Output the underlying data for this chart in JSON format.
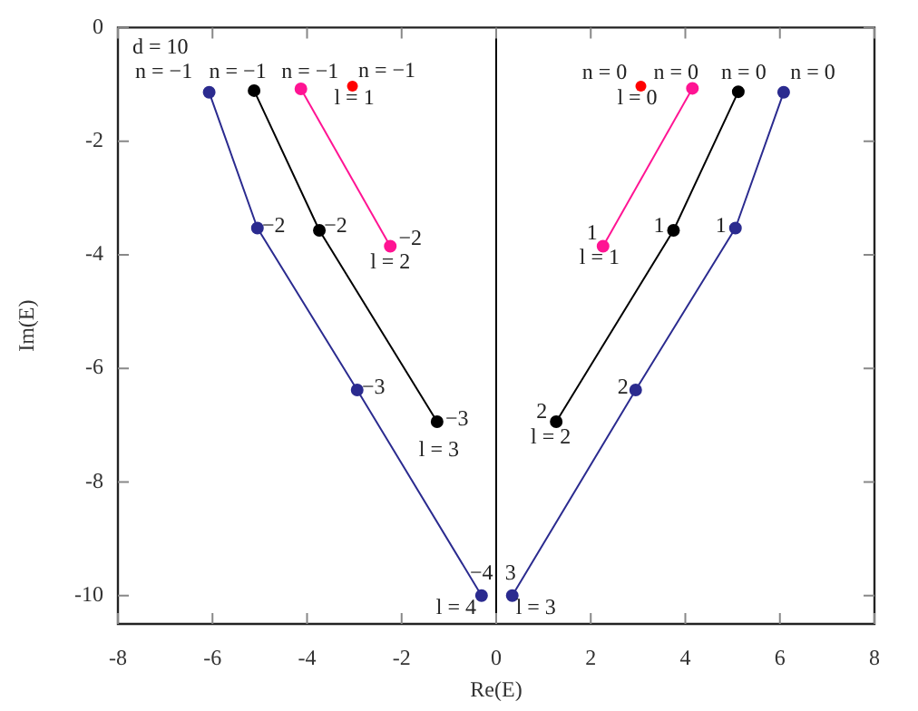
{
  "chart_data": {
    "type": "line",
    "xlabel": "Re(E)",
    "ylabel": "Im(E)",
    "xlim": [
      -8,
      8
    ],
    "xticks": [
      -8,
      -6,
      -4,
      -2,
      0,
      2,
      4,
      6,
      8
    ],
    "ylim": [
      -10.5,
      0
    ],
    "yticks": [
      -10,
      -8,
      -6,
      -4,
      -2,
      0
    ],
    "grid": false,
    "legend": false,
    "marker": "circle",
    "line_style": "solid",
    "series": [
      {
        "type": "scatter",
        "color": "#ff0000",
        "x": [
          -3.04,
          3.06
        ],
        "values": [
          -1.03,
          -1.03
        ]
      },
      {
        "type": "line",
        "color": "#ff1493",
        "x": [
          -4.13,
          -2.24
        ],
        "values": [
          -1.08,
          -3.85
        ]
      },
      {
        "type": "line",
        "color": "#ff1493",
        "x": [
          4.15,
          2.26
        ],
        "values": [
          -1.07,
          -3.85
        ]
      },
      {
        "type": "line",
        "color": "#000000",
        "x": [
          -5.12,
          -3.74,
          -1.25
        ],
        "values": [
          -1.11,
          -3.57,
          -6.94
        ]
      },
      {
        "type": "line",
        "color": "#000000",
        "x": [
          5.12,
          3.75,
          1.27
        ],
        "values": [
          -1.13,
          -3.57,
          -6.94
        ]
      },
      {
        "type": "line",
        "color": "#2b2b8f",
        "x": [
          -6.07,
          -5.05,
          -2.94,
          -0.31
        ],
        "values": [
          -1.14,
          -3.53,
          -6.38,
          -10.0
        ]
      },
      {
        "type": "line",
        "color": "#2b2b8f",
        "x": [
          6.08,
          5.06,
          2.95,
          0.34
        ],
        "values": [
          -1.14,
          -3.53,
          -6.38,
          -10.0
        ]
      }
    ],
    "ref_lines": [
      {
        "axis": "x",
        "value": 0,
        "color": "#000000"
      }
    ],
    "annotations": [
      "d = 10",
      {
        "text": "n = −1",
        "x": -6.07,
        "y": -1.14
      },
      {
        "text": "n = −1",
        "x": -5.12,
        "y": -1.11
      },
      {
        "text": "n = −1",
        "x": -4.13,
        "y": -1.08
      },
      {
        "text": "n = −1",
        "x": -3.04,
        "y": -1.03
      },
      {
        "text": "l = 1",
        "x": -3.04,
        "y": -1.03
      },
      {
        "text": "−2",
        "x": -5.05,
        "y": -3.53
      },
      {
        "text": "−2",
        "x": -3.74,
        "y": -3.57
      },
      {
        "text": "−2",
        "x": -2.24,
        "y": -3.85
      },
      {
        "text": "l = 2",
        "x": -2.24,
        "y": -3.85
      },
      {
        "text": "−3",
        "x": -2.94,
        "y": -6.38
      },
      {
        "text": "−3",
        "x": -1.25,
        "y": -6.94
      },
      {
        "text": "l = 3",
        "x": -1.25,
        "y": -6.94
      },
      {
        "text": "−4",
        "x": -0.31,
        "y": -10.0
      },
      {
        "text": "l = 4",
        "x": -0.31,
        "y": -10.0
      },
      {
        "text": "n = 0",
        "x": 3.06,
        "y": -1.03
      },
      {
        "text": "n = 0",
        "x": 4.15,
        "y": -1.07
      },
      {
        "text": "n = 0",
        "x": 5.12,
        "y": -1.13
      },
      {
        "text": "n = 0",
        "x": 6.08,
        "y": -1.14
      },
      {
        "text": "l = 0",
        "x": 3.06,
        "y": -1.03
      },
      {
        "text": "1",
        "x": 2.26,
        "y": -3.85
      },
      {
        "text": "l = 1",
        "x": 2.26,
        "y": -3.85
      },
      {
        "text": "1",
        "x": 3.75,
        "y": -3.57
      },
      {
        "text": "1",
        "x": 5.06,
        "y": -3.53
      },
      {
        "text": "2",
        "x": 1.27,
        "y": -6.94
      },
      {
        "text": "l = 2",
        "x": 1.27,
        "y": -6.94
      },
      {
        "text": "2",
        "x": 2.95,
        "y": -6.38
      },
      {
        "text": "3",
        "x": 0.34,
        "y": -10.0
      },
      {
        "text": "l = 3",
        "x": 0.34,
        "y": -10.0
      }
    ]
  }
}
